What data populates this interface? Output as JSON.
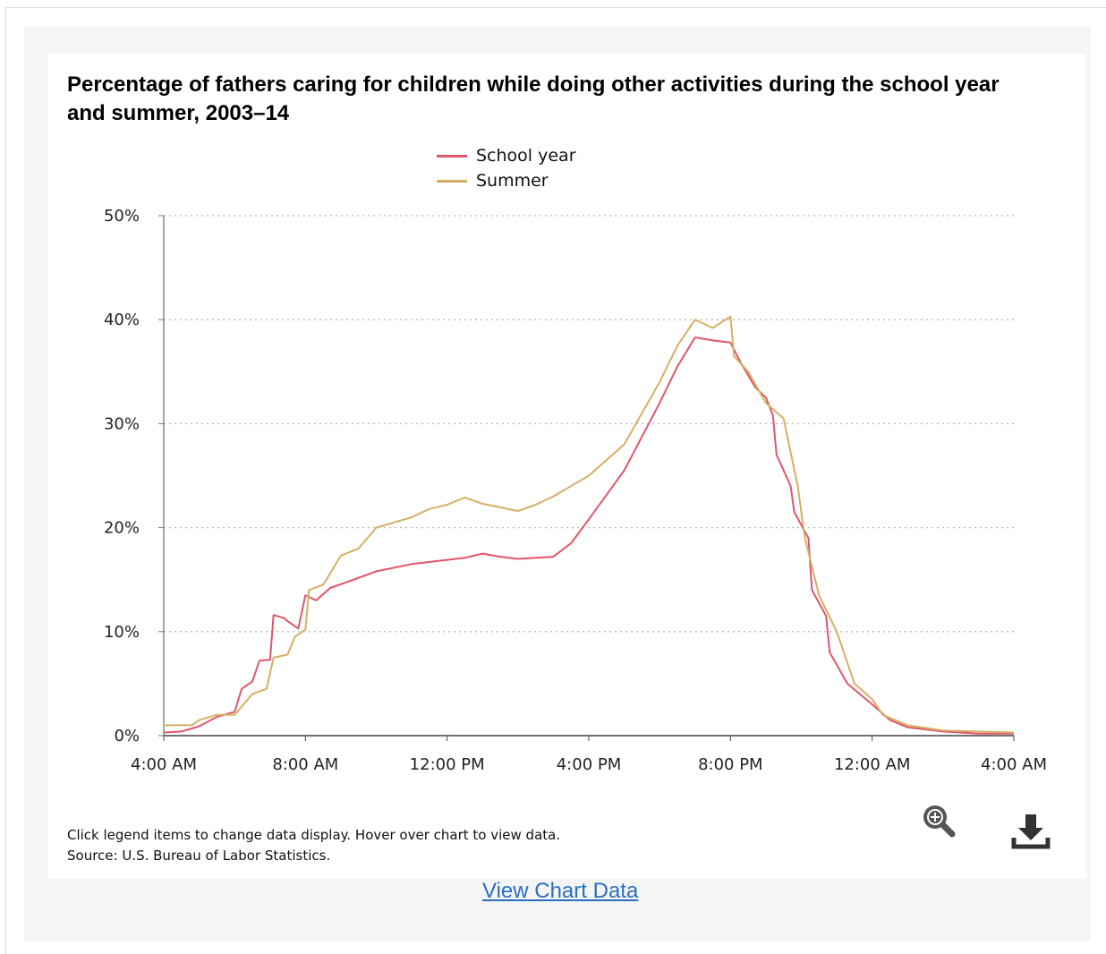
{
  "chart_data": {
    "type": "line",
    "title": "Percentage of fathers caring for children while doing other activities during the school year and summer, 2003–14",
    "x_unit": "hours since 4:00 AM",
    "x_ticks": [
      {
        "x": 0,
        "label": "4:00 AM"
      },
      {
        "x": 4,
        "label": "8:00 AM"
      },
      {
        "x": 8,
        "label": "12:00 PM"
      },
      {
        "x": 12,
        "label": "4:00 PM"
      },
      {
        "x": 16,
        "label": "8:00 PM"
      },
      {
        "x": 20,
        "label": "12:00 AM"
      },
      {
        "x": 24,
        "label": "4:00 AM"
      }
    ],
    "y_ticks": [
      {
        "y": 0,
        "label": "0%"
      },
      {
        "y": 10,
        "label": "10%"
      },
      {
        "y": 20,
        "label": "20%"
      },
      {
        "y": 30,
        "label": "30%"
      },
      {
        "y": 40,
        "label": "40%"
      },
      {
        "y": 50,
        "label": "50%"
      }
    ],
    "ylim": [
      0,
      50
    ],
    "xlim": [
      0,
      24
    ],
    "grid": "horizontal dotted",
    "legend_position": "top-center",
    "series": [
      {
        "name": "School year",
        "color": "#e0566b",
        "points": [
          [
            0,
            0.3
          ],
          [
            0.5,
            0.4
          ],
          [
            1,
            0.9
          ],
          [
            1.5,
            1.8
          ],
          [
            2,
            2.3
          ],
          [
            2.2,
            4.5
          ],
          [
            2.5,
            5.2
          ],
          [
            2.7,
            7.2
          ],
          [
            3.0,
            7.3
          ],
          [
            3.1,
            11.6
          ],
          [
            3.4,
            11.3
          ],
          [
            3.5,
            11.0
          ],
          [
            3.8,
            10.3
          ],
          [
            4.0,
            13.5
          ],
          [
            4.3,
            13.0
          ],
          [
            4.7,
            14.2
          ],
          [
            5.2,
            14.8
          ],
          [
            6,
            15.8
          ],
          [
            7,
            16.5
          ],
          [
            8,
            16.9
          ],
          [
            8.5,
            17.1
          ],
          [
            9,
            17.5
          ],
          [
            9.5,
            17.2
          ],
          [
            10,
            17.0
          ],
          [
            11,
            17.2
          ],
          [
            11.5,
            18.5
          ],
          [
            12,
            20.8
          ],
          [
            13,
            25.5
          ],
          [
            14,
            32.0
          ],
          [
            14.5,
            35.5
          ],
          [
            15,
            38.3
          ],
          [
            15.5,
            38.0
          ],
          [
            16,
            37.8
          ],
          [
            16.3,
            35.8
          ],
          [
            16.7,
            33.5
          ],
          [
            17.0,
            32.5
          ],
          [
            17.2,
            30.8
          ],
          [
            17.3,
            27.0
          ],
          [
            17.7,
            24.0
          ],
          [
            17.8,
            21.5
          ],
          [
            18.2,
            19.0
          ],
          [
            18.3,
            14.0
          ],
          [
            18.7,
            11.5
          ],
          [
            18.8,
            8.0
          ],
          [
            19.3,
            5.0
          ],
          [
            20,
            3.0
          ],
          [
            20.5,
            1.5
          ],
          [
            21,
            0.8
          ],
          [
            22,
            0.4
          ],
          [
            23,
            0.2
          ],
          [
            24,
            0.2
          ]
        ]
      },
      {
        "name": "Summer",
        "color": "#d4b064",
        "points": [
          [
            0,
            1.0
          ],
          [
            0.8,
            1.0
          ],
          [
            1,
            1.5
          ],
          [
            1.5,
            2.0
          ],
          [
            2,
            2.0
          ],
          [
            2.5,
            4.0
          ],
          [
            2.9,
            4.5
          ],
          [
            3.1,
            7.5
          ],
          [
            3.5,
            7.8
          ],
          [
            3.7,
            9.5
          ],
          [
            4.0,
            10.2
          ],
          [
            4.1,
            14.0
          ],
          [
            4.5,
            14.5
          ],
          [
            5.0,
            17.3
          ],
          [
            5.5,
            18.0
          ],
          [
            6,
            20.0
          ],
          [
            7,
            21.0
          ],
          [
            7.5,
            21.8
          ],
          [
            8,
            22.2
          ],
          [
            8.5,
            22.9
          ],
          [
            9,
            22.3
          ],
          [
            10,
            21.6
          ],
          [
            10.5,
            22.2
          ],
          [
            11,
            23.0
          ],
          [
            12,
            25.0
          ],
          [
            13,
            28.0
          ],
          [
            14,
            34.0
          ],
          [
            14.5,
            37.5
          ],
          [
            15,
            40.0
          ],
          [
            15.5,
            39.2
          ],
          [
            16,
            40.3
          ],
          [
            16.1,
            36.5
          ],
          [
            16.5,
            35.0
          ],
          [
            17,
            32.0
          ],
          [
            17.5,
            30.5
          ],
          [
            17.9,
            24.0
          ],
          [
            18.1,
            19.0
          ],
          [
            18.5,
            13.5
          ],
          [
            19.0,
            10.0
          ],
          [
            19.5,
            5.0
          ],
          [
            20,
            3.5
          ],
          [
            20.3,
            2.0
          ],
          [
            21,
            1.0
          ],
          [
            22,
            0.5
          ],
          [
            23,
            0.4
          ],
          [
            24,
            0.3
          ]
        ]
      }
    ]
  },
  "note": {
    "line1": "Click legend items to change data display. Hover over chart to view data.",
    "line2": "Source: U.S. Bureau of Labor Statistics."
  },
  "link": {
    "view_chart_data": "View Chart Data"
  },
  "icons": {
    "zoom": "zoom-in-icon",
    "download": "download-icon"
  }
}
